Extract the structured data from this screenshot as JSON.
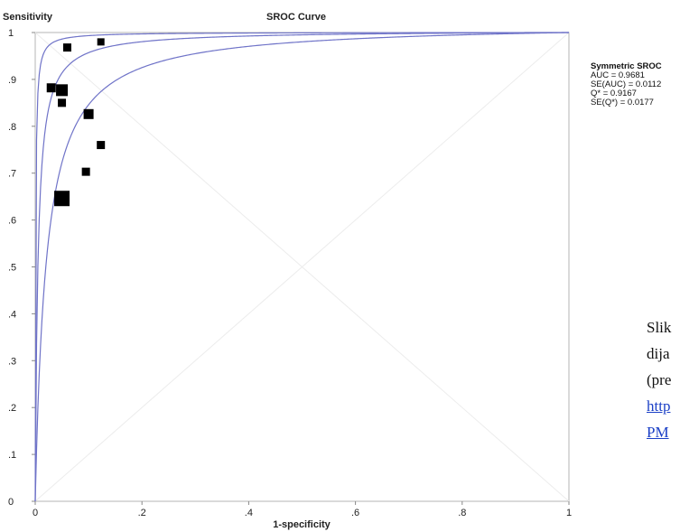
{
  "chart_data": {
    "type": "scatter",
    "title": "SROC Curve",
    "xlabel": "1-specificity",
    "ylabel": "Sensitivity",
    "xlim": [
      0,
      1
    ],
    "ylim": [
      0,
      1
    ],
    "x_ticks": [
      "0",
      ".2",
      ".4",
      ".6",
      ".8",
      "1"
    ],
    "y_ticks": [
      "0",
      ".1",
      ".2",
      ".3",
      ".4",
      ".5",
      ".6",
      ".7",
      ".8",
      ".9",
      "1"
    ],
    "grid": false,
    "diagonals": true,
    "curve_color": "#6f73c8",
    "point_color": "#000000",
    "points": [
      {
        "x": 0.03,
        "y": 0.882,
        "size": 10
      },
      {
        "x": 0.05,
        "y": 0.877,
        "size": 13
      },
      {
        "x": 0.06,
        "y": 0.968,
        "size": 9
      },
      {
        "x": 0.123,
        "y": 0.98,
        "size": 8
      },
      {
        "x": 0.05,
        "y": 0.85,
        "size": 9
      },
      {
        "x": 0.1,
        "y": 0.826,
        "size": 11
      },
      {
        "x": 0.123,
        "y": 0.76,
        "size": 9
      },
      {
        "x": 0.095,
        "y": 0.703,
        "size": 9
      },
      {
        "x": 0.05,
        "y": 0.646,
        "size": 17
      }
    ],
    "curves": [
      {
        "log_dor": 7.2
      },
      {
        "log_dor": 5.3
      },
      {
        "log_dor": 3.9
      }
    ]
  },
  "stats": {
    "heading": "Symmetric SROC",
    "lines": [
      "AUC = 0.9681",
      "SE(AUC) = 0.0112",
      "Q* = 0.9167",
      "SE(Q*) = 0.0177"
    ]
  },
  "caption": {
    "lines": [
      "Slik",
      "dija",
      "(pre"
    ],
    "links": [
      "http",
      "PM"
    ]
  }
}
